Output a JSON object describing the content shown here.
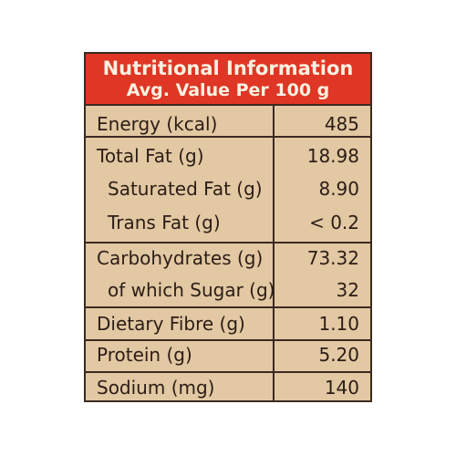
{
  "header": {
    "title": "Nutritional Information",
    "subtitle": "Avg. Value Per 100 g"
  },
  "rows": [
    {
      "label": "Energy (kcal)",
      "value": "485",
      "indent": false
    },
    {
      "label": "Total Fat (g)",
      "value": "18.98",
      "indent": false
    },
    {
      "label": "Saturated Fat (g)",
      "value": "8.90",
      "indent": true
    },
    {
      "label": "Trans Fat (g)",
      "value": "< 0.2",
      "indent": true
    },
    {
      "label": "Carbohydrates (g)",
      "value": "73.32",
      "indent": false
    },
    {
      "label": "of which Sugar (g)",
      "value": "32",
      "indent": true
    },
    {
      "label": "Dietary Fibre (g)",
      "value": "1.10",
      "indent": false
    },
    {
      "label": "Protein (g)",
      "value": "5.20",
      "indent": false
    },
    {
      "label": "Sodium (mg)",
      "value": "140",
      "indent": false
    }
  ],
  "colors": {
    "header_bg": "#df3625",
    "panel_bg": "#e2c8a3",
    "border": "#3a2a20",
    "text": "#2b1d15"
  }
}
